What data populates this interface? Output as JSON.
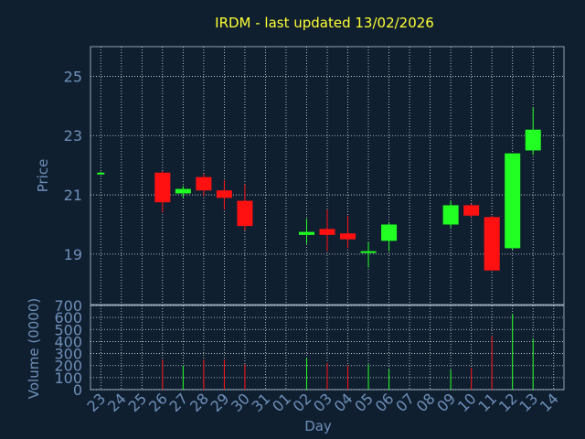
{
  "colors": {
    "background": "#0f1f30",
    "axis_text": "#6f8fb8",
    "title": "#ffff33",
    "grid": "#ffffff",
    "up": "#22ff22",
    "down": "#ff1111",
    "frame": "#8ea0b4"
  },
  "chart_data": [
    {
      "type": "candlestick",
      "title": "IRDM - last updated 13/02/2026",
      "ylabel": "Price",
      "ylim": [
        17.3,
        26.0
      ],
      "yticks": [
        "19",
        "21",
        "23",
        "25"
      ],
      "grid": true,
      "x": [
        "23",
        "24",
        "25",
        "26",
        "27",
        "28",
        "29",
        "30",
        "31",
        "01",
        "02",
        "03",
        "04",
        "05",
        "06",
        "07",
        "08",
        "09",
        "10",
        "11",
        "12",
        "13",
        "14"
      ],
      "candles": [
        {
          "x": "23",
          "open": 21.75,
          "high": 21.78,
          "low": 21.72,
          "close": 21.75
        },
        {
          "x": "26",
          "open": 21.75,
          "high": 21.8,
          "low": 20.4,
          "close": 20.75
        },
        {
          "x": "27",
          "open": 21.05,
          "high": 21.3,
          "low": 20.9,
          "close": 21.2
        },
        {
          "x": "28",
          "open": 21.6,
          "high": 21.7,
          "low": 20.95,
          "close": 21.15
        },
        {
          "x": "29",
          "open": 21.15,
          "high": 21.5,
          "low": 20.5,
          "close": 20.9
        },
        {
          "x": "30",
          "open": 20.8,
          "high": 21.35,
          "low": 19.8,
          "close": 19.95
        },
        {
          "x": "02",
          "open": 19.65,
          "high": 20.2,
          "low": 19.35,
          "close": 19.75
        },
        {
          "x": "03",
          "open": 19.85,
          "high": 20.5,
          "low": 19.1,
          "close": 19.65
        },
        {
          "x": "04",
          "open": 19.7,
          "high": 20.3,
          "low": 19.2,
          "close": 19.5
        },
        {
          "x": "05",
          "open": 19.1,
          "high": 19.4,
          "low": 18.55,
          "close": 19.1
        },
        {
          "x": "06",
          "open": 19.45,
          "high": 20.05,
          "low": 19.1,
          "close": 20.0
        },
        {
          "x": "09",
          "open": 20.0,
          "high": 20.8,
          "low": 19.9,
          "close": 20.65
        },
        {
          "x": "10",
          "open": 20.65,
          "high": 20.7,
          "low": 20.25,
          "close": 20.3
        },
        {
          "x": "11",
          "open": 20.25,
          "high": 20.3,
          "low": 18.45,
          "close": 18.45
        },
        {
          "x": "12",
          "open": 19.2,
          "high": 22.4,
          "low": 19.15,
          "close": 22.4
        },
        {
          "x": "13",
          "open": 22.5,
          "high": 23.95,
          "low": 22.35,
          "close": 23.2
        }
      ]
    },
    {
      "type": "bar",
      "ylabel": "Volume (0000)",
      "xlabel": "Day",
      "ylim": [
        0,
        700
      ],
      "yticks": [
        "0",
        "100",
        "200",
        "300",
        "400",
        "500",
        "600",
        "700"
      ],
      "xticks": [
        "23",
        "24",
        "25",
        "26",
        "27",
        "28",
        "29",
        "30",
        "31",
        "01",
        "02",
        "03",
        "04",
        "05",
        "06",
        "07",
        "08",
        "09",
        "10",
        "11",
        "12",
        "13",
        "14"
      ],
      "grid": true,
      "bars": [
        {
          "x": "26",
          "value": 250,
          "dir": "down"
        },
        {
          "x": "27",
          "value": 200,
          "dir": "up"
        },
        {
          "x": "28",
          "value": 250,
          "dir": "down"
        },
        {
          "x": "29",
          "value": 250,
          "dir": "down"
        },
        {
          "x": "30",
          "value": 210,
          "dir": "down"
        },
        {
          "x": "02",
          "value": 265,
          "dir": "up"
        },
        {
          "x": "03",
          "value": 220,
          "dir": "down"
        },
        {
          "x": "04",
          "value": 200,
          "dir": "down"
        },
        {
          "x": "05",
          "value": 210,
          "dir": "up"
        },
        {
          "x": "06",
          "value": 170,
          "dir": "up"
        },
        {
          "x": "09",
          "value": 165,
          "dir": "up"
        },
        {
          "x": "10",
          "value": 180,
          "dir": "down"
        },
        {
          "x": "11",
          "value": 445,
          "dir": "down"
        },
        {
          "x": "12",
          "value": 630,
          "dir": "up"
        },
        {
          "x": "13",
          "value": 425,
          "dir": "up"
        }
      ]
    }
  ]
}
